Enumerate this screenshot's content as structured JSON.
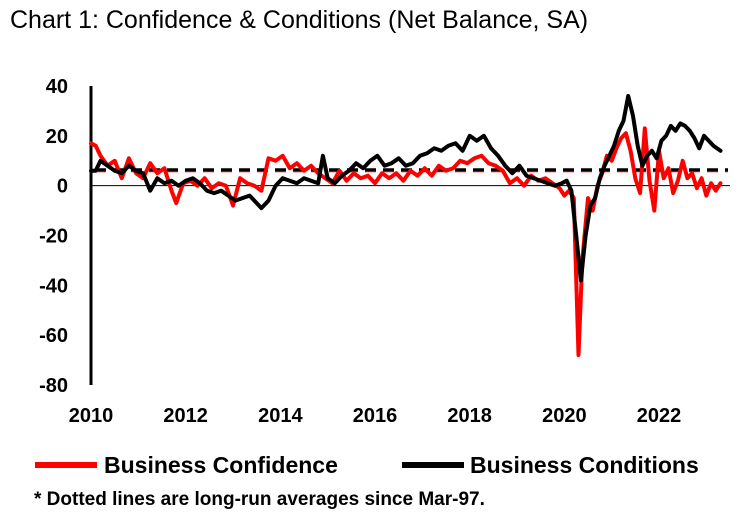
{
  "title": "Chart 1: Confidence & Conditions (Net Balance, SA)",
  "footnote": "* Dotted lines are long-run averages since Mar-97.",
  "chart_data": {
    "type": "line",
    "title": "Chart 1: Confidence & Conditions (Net Balance, SA)",
    "xlabel": "",
    "ylabel": "",
    "xlim": [
      2010.0,
      2023.5
    ],
    "ylim": [
      -80,
      40
    ],
    "y_ticks": [
      40,
      20,
      0,
      -20,
      -40,
      -60,
      -80
    ],
    "y_tick_labels": [
      "40",
      "20",
      "0",
      "-20",
      "-40",
      "-60",
      "-80"
    ],
    "x_ticks": [
      2010,
      2012,
      2014,
      2016,
      2018,
      2020,
      2022
    ],
    "x_tick_labels": [
      "2010",
      "2012",
      "2014",
      "2016",
      "2018",
      "2020",
      "2022"
    ],
    "legend_position": "bottom",
    "series": [
      {
        "name": "Business Confidence",
        "color": "#ff0000",
        "points": [
          [
            2010.0,
            17
          ],
          [
            2010.1,
            16
          ],
          [
            2010.2,
            12
          ],
          [
            2010.35,
            8
          ],
          [
            2010.5,
            10
          ],
          [
            2010.65,
            3
          ],
          [
            2010.8,
            11
          ],
          [
            2010.95,
            5
          ],
          [
            2011.1,
            3
          ],
          [
            2011.25,
            9
          ],
          [
            2011.4,
            5
          ],
          [
            2011.55,
            7
          ],
          [
            2011.7,
            -2
          ],
          [
            2011.8,
            -7
          ],
          [
            2011.95,
            1
          ],
          [
            2012.1,
            2
          ],
          [
            2012.25,
            0
          ],
          [
            2012.4,
            3
          ],
          [
            2012.55,
            -1
          ],
          [
            2012.7,
            1
          ],
          [
            2012.85,
            0
          ],
          [
            2013.0,
            -8
          ],
          [
            2013.15,
            3
          ],
          [
            2013.3,
            1
          ],
          [
            2013.45,
            0
          ],
          [
            2013.6,
            -2
          ],
          [
            2013.75,
            11
          ],
          [
            2013.9,
            10
          ],
          [
            2014.05,
            12
          ],
          [
            2014.2,
            7
          ],
          [
            2014.35,
            9
          ],
          [
            2014.5,
            6
          ],
          [
            2014.65,
            8
          ],
          [
            2014.8,
            5
          ],
          [
            2014.95,
            3
          ],
          [
            2015.1,
            1
          ],
          [
            2015.25,
            6
          ],
          [
            2015.4,
            2
          ],
          [
            2015.55,
            5
          ],
          [
            2015.7,
            3
          ],
          [
            2015.85,
            4
          ],
          [
            2016.0,
            1
          ],
          [
            2016.15,
            5
          ],
          [
            2016.3,
            3
          ],
          [
            2016.45,
            5
          ],
          [
            2016.6,
            2
          ],
          [
            2016.75,
            6
          ],
          [
            2016.9,
            4
          ],
          [
            2017.05,
            7
          ],
          [
            2017.2,
            4
          ],
          [
            2017.35,
            8
          ],
          [
            2017.5,
            6
          ],
          [
            2017.65,
            7
          ],
          [
            2017.8,
            10
          ],
          [
            2017.95,
            9
          ],
          [
            2018.1,
            11
          ],
          [
            2018.25,
            12
          ],
          [
            2018.4,
            9
          ],
          [
            2018.55,
            8
          ],
          [
            2018.7,
            6
          ],
          [
            2018.85,
            1
          ],
          [
            2019.0,
            3
          ],
          [
            2019.15,
            0
          ],
          [
            2019.3,
            4
          ],
          [
            2019.45,
            2
          ],
          [
            2019.6,
            3
          ],
          [
            2019.75,
            1
          ],
          [
            2019.9,
            -1
          ],
          [
            2020.0,
            -4
          ],
          [
            2020.1,
            -2
          ],
          [
            2020.2,
            -5
          ],
          [
            2020.3,
            -68
          ],
          [
            2020.38,
            -30
          ],
          [
            2020.5,
            -5
          ],
          [
            2020.6,
            -10
          ],
          [
            2020.7,
            0
          ],
          [
            2020.8,
            5
          ],
          [
            2020.9,
            12
          ],
          [
            2021.0,
            10
          ],
          [
            2021.1,
            15
          ],
          [
            2021.2,
            19
          ],
          [
            2021.3,
            21
          ],
          [
            2021.4,
            14
          ],
          [
            2021.5,
            3
          ],
          [
            2021.6,
            -3
          ],
          [
            2021.7,
            23
          ],
          [
            2021.8,
            2
          ],
          [
            2021.9,
            -10
          ],
          [
            2022.0,
            14
          ],
          [
            2022.1,
            3
          ],
          [
            2022.2,
            7
          ],
          [
            2022.3,
            -3
          ],
          [
            2022.4,
            2
          ],
          [
            2022.5,
            10
          ],
          [
            2022.6,
            3
          ],
          [
            2022.7,
            5
          ],
          [
            2022.8,
            -1
          ],
          [
            2022.9,
            3
          ],
          [
            2023.0,
            -4
          ],
          [
            2023.1,
            1
          ],
          [
            2023.2,
            -2
          ],
          [
            2023.3,
            1
          ]
        ]
      },
      {
        "name": "Business Conditions",
        "color": "#000000",
        "points": [
          [
            2010.0,
            6
          ],
          [
            2010.1,
            6
          ],
          [
            2010.2,
            10
          ],
          [
            2010.35,
            8
          ],
          [
            2010.5,
            6
          ],
          [
            2010.65,
            5
          ],
          [
            2010.8,
            8
          ],
          [
            2010.95,
            6
          ],
          [
            2011.1,
            5
          ],
          [
            2011.25,
            -2
          ],
          [
            2011.4,
            3
          ],
          [
            2011.55,
            1
          ],
          [
            2011.7,
            2
          ],
          [
            2011.85,
            0
          ],
          [
            2012.0,
            2
          ],
          [
            2012.15,
            3
          ],
          [
            2012.3,
            1
          ],
          [
            2012.45,
            -2
          ],
          [
            2012.6,
            -3
          ],
          [
            2012.75,
            -2
          ],
          [
            2012.9,
            -4
          ],
          [
            2013.05,
            -6
          ],
          [
            2013.2,
            -5
          ],
          [
            2013.35,
            -4
          ],
          [
            2013.5,
            -7
          ],
          [
            2013.6,
            -9
          ],
          [
            2013.75,
            -6
          ],
          [
            2013.9,
            0
          ],
          [
            2014.05,
            3
          ],
          [
            2014.2,
            2
          ],
          [
            2014.35,
            1
          ],
          [
            2014.5,
            3
          ],
          [
            2014.65,
            2
          ],
          [
            2014.8,
            1
          ],
          [
            2014.9,
            12
          ],
          [
            2015.0,
            3
          ],
          [
            2015.15,
            1
          ],
          [
            2015.3,
            4
          ],
          [
            2015.45,
            6
          ],
          [
            2015.6,
            9
          ],
          [
            2015.75,
            7
          ],
          [
            2015.9,
            10
          ],
          [
            2016.05,
            12
          ],
          [
            2016.2,
            8
          ],
          [
            2016.35,
            9
          ],
          [
            2016.5,
            11
          ],
          [
            2016.65,
            8
          ],
          [
            2016.8,
            9
          ],
          [
            2016.95,
            12
          ],
          [
            2017.1,
            13
          ],
          [
            2017.25,
            15
          ],
          [
            2017.4,
            14
          ],
          [
            2017.55,
            16
          ],
          [
            2017.7,
            17
          ],
          [
            2017.85,
            14
          ],
          [
            2018.0,
            20
          ],
          [
            2018.15,
            18
          ],
          [
            2018.3,
            20
          ],
          [
            2018.45,
            15
          ],
          [
            2018.6,
            12
          ],
          [
            2018.75,
            8
          ],
          [
            2018.9,
            5
          ],
          [
            2019.05,
            8
          ],
          [
            2019.2,
            4
          ],
          [
            2019.35,
            3
          ],
          [
            2019.5,
            2
          ],
          [
            2019.65,
            1
          ],
          [
            2019.8,
            0
          ],
          [
            2019.95,
            1
          ],
          [
            2020.05,
            2
          ],
          [
            2020.15,
            -2
          ],
          [
            2020.25,
            -20
          ],
          [
            2020.35,
            -38
          ],
          [
            2020.45,
            -20
          ],
          [
            2020.55,
            -8
          ],
          [
            2020.65,
            -5
          ],
          [
            2020.75,
            3
          ],
          [
            2020.85,
            8
          ],
          [
            2020.95,
            12
          ],
          [
            2021.05,
            16
          ],
          [
            2021.15,
            22
          ],
          [
            2021.25,
            26
          ],
          [
            2021.35,
            36
          ],
          [
            2021.45,
            28
          ],
          [
            2021.55,
            16
          ],
          [
            2021.65,
            8
          ],
          [
            2021.75,
            12
          ],
          [
            2021.85,
            14
          ],
          [
            2021.95,
            11
          ],
          [
            2022.05,
            18
          ],
          [
            2022.15,
            20
          ],
          [
            2022.25,
            24
          ],
          [
            2022.35,
            22
          ],
          [
            2022.45,
            25
          ],
          [
            2022.55,
            24
          ],
          [
            2022.65,
            22
          ],
          [
            2022.75,
            19
          ],
          [
            2022.85,
            15
          ],
          [
            2022.95,
            20
          ],
          [
            2023.05,
            18
          ],
          [
            2023.15,
            16
          ],
          [
            2023.3,
            14
          ]
        ]
      }
    ],
    "averages": [
      {
        "name": "Business Confidence long-run average",
        "value": 6,
        "color": "#ff0000",
        "style": "dashed"
      },
      {
        "name": "Business Conditions long-run average",
        "value": 6,
        "color": "#000000",
        "style": "dashed"
      }
    ]
  }
}
